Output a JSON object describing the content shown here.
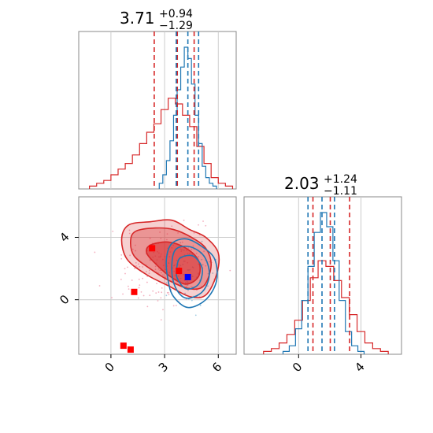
{
  "chart_data": {
    "type": "corner",
    "colors": {
      "red": "#d62728",
      "blue": "#1f77b4",
      "point_red": "#ff0000",
      "point_blue": "#0000ff",
      "grid": "#cccccc",
      "frame": "#888888",
      "scatter_pink": "#f4b0c0",
      "scatter_lightblue": "#9ecae1"
    },
    "param1": {
      "title": {
        "value": "3.71",
        "plus": "+0.94",
        "minus": "−1.29"
      },
      "xlim": [
        -1.8,
        7.0
      ],
      "xticks": [
        0,
        3,
        6
      ],
      "xtick_labels": [
        "0",
        "3",
        "6"
      ],
      "red_quantiles": [
        2.42,
        3.71,
        4.65
      ],
      "blue_quantiles": [
        3.65,
        4.3,
        4.9
      ],
      "hist_red": {
        "x": [
          -1.0,
          -0.6,
          -0.2,
          0.2,
          0.6,
          1.0,
          1.4,
          1.8,
          2.2,
          2.6,
          3.0,
          3.4,
          3.8,
          4.2,
          4.6,
          5.0,
          5.4,
          5.8,
          6.2,
          6.6
        ],
        "values": [
          0.02,
          0.04,
          0.06,
          0.1,
          0.14,
          0.18,
          0.24,
          0.32,
          0.4,
          0.46,
          0.56,
          0.64,
          0.6,
          0.52,
          0.44,
          0.3,
          0.18,
          0.08,
          0.04,
          0.02
        ]
      },
      "hist_blue": {
        "x": [
          2.8,
          3.0,
          3.2,
          3.4,
          3.6,
          3.8,
          4.0,
          4.2,
          4.4,
          4.6,
          4.8,
          5.0,
          5.2,
          5.4,
          5.6,
          5.8
        ],
        "values": [
          0.04,
          0.1,
          0.2,
          0.34,
          0.52,
          0.7,
          0.86,
          1.0,
          0.92,
          0.74,
          0.52,
          0.32,
          0.16,
          0.08,
          0.04,
          0.02
        ]
      }
    },
    "param2": {
      "title": {
        "value": "2.03",
        "plus": "+1.24",
        "minus": "−1.11"
      },
      "xlim": [
        -3.5,
        6.6
      ],
      "xticks": [
        0,
        4
      ],
      "xtick_labels": [
        "0",
        "4"
      ],
      "red_quantiles": [
        0.92,
        2.03,
        3.27
      ],
      "blue_quantiles": [
        0.6,
        1.5,
        2.3
      ],
      "hist_red": {
        "x": [
          -2.0,
          -1.5,
          -1.0,
          -0.5,
          0.0,
          0.5,
          1.0,
          1.5,
          2.0,
          2.5,
          3.0,
          3.5,
          4.0,
          4.5,
          5.0,
          5.5
        ],
        "values": [
          0.02,
          0.04,
          0.08,
          0.14,
          0.24,
          0.38,
          0.54,
          0.66,
          0.62,
          0.52,
          0.4,
          0.28,
          0.16,
          0.08,
          0.04,
          0.02
        ]
      },
      "hist_blue": {
        "x": [
          -0.8,
          -0.4,
          0.0,
          0.4,
          0.8,
          1.2,
          1.6,
          2.0,
          2.4,
          2.8,
          3.2,
          3.6,
          4.0
        ],
        "values": [
          0.02,
          0.06,
          0.18,
          0.38,
          0.62,
          0.86,
          1.0,
          0.9,
          0.66,
          0.38,
          0.16,
          0.06,
          0.02
        ]
      }
    },
    "joint": {
      "xlim": [
        -1.8,
        7.0
      ],
      "ylim": [
        -3.5,
        6.6
      ],
      "xticks": [
        0,
        3,
        6
      ],
      "yticks": [
        0,
        4
      ],
      "ytick_labels": [
        "0",
        "4"
      ],
      "red_contours": [
        {
          "level": "outer",
          "points": [
            [
              1.0,
              4.8
            ],
            [
              2.2,
              5.0
            ],
            [
              3.4,
              5.1
            ],
            [
              4.4,
              4.5
            ],
            [
              5.3,
              4.0
            ],
            [
              6.0,
              3.0
            ],
            [
              5.9,
              1.6
            ],
            [
              5.3,
              0.3
            ],
            [
              4.4,
              0.2
            ],
            [
              3.2,
              0.9
            ],
            [
              2.0,
              1.6
            ],
            [
              0.9,
              2.6
            ],
            [
              0.6,
              3.9
            ]
          ]
        },
        {
          "level": "mid",
          "points": [
            [
              1.4,
              4.4
            ],
            [
              2.5,
              4.6
            ],
            [
              3.5,
              4.5
            ],
            [
              4.5,
              4.0
            ],
            [
              5.3,
              3.3
            ],
            [
              5.6,
              2.2
            ],
            [
              5.2,
              0.9
            ],
            [
              4.4,
              0.7
            ],
            [
              3.3,
              1.2
            ],
            [
              2.3,
              1.9
            ],
            [
              1.3,
              2.8
            ],
            [
              1.1,
              3.8
            ]
          ]
        },
        {
          "level": "inner",
          "points": [
            [
              2.2,
              3.5
            ],
            [
              3.2,
              3.7
            ],
            [
              4.2,
              3.3
            ],
            [
              4.9,
              2.5
            ],
            [
              4.9,
              1.5
            ],
            [
              4.2,
              1.0
            ],
            [
              3.3,
              1.5
            ],
            [
              2.5,
              2.3
            ],
            [
              2.0,
              3.0
            ]
          ]
        }
      ],
      "blue_contours": [
        {
          "level": "outer",
          "points": [
            [
              3.4,
              3.6
            ],
            [
              4.2,
              3.9
            ],
            [
              5.1,
              3.4
            ],
            [
              5.8,
              2.6
            ],
            [
              5.9,
              1.2
            ],
            [
              5.3,
              0.0
            ],
            [
              4.3,
              -0.5
            ],
            [
              3.5,
              0.2
            ],
            [
              3.2,
              1.2
            ],
            [
              3.1,
              2.6
            ]
          ]
        },
        {
          "level": "mid",
          "points": [
            [
              3.6,
              3.2
            ],
            [
              4.4,
              3.4
            ],
            [
              5.2,
              2.8
            ],
            [
              5.5,
              1.6
            ],
            [
              5.1,
              0.5
            ],
            [
              4.2,
              0.1
            ],
            [
              3.6,
              0.8
            ],
            [
              3.4,
              2.0
            ]
          ]
        },
        {
          "level": "inner",
          "points": [
            [
              3.9,
              2.7
            ],
            [
              4.6,
              2.8
            ],
            [
              5.1,
              2.0
            ],
            [
              4.9,
              1.0
            ],
            [
              4.2,
              0.7
            ],
            [
              3.7,
              1.4
            ],
            [
              3.7,
              2.2
            ]
          ]
        }
      ],
      "red_points": [
        [
          2.3,
          3.3
        ],
        [
          3.8,
          1.85
        ],
        [
          1.3,
          0.5
        ],
        [
          0.7,
          -2.95
        ],
        [
          1.1,
          -3.2
        ]
      ],
      "blue_points": [
        [
          4.3,
          1.45
        ]
      ]
    }
  }
}
